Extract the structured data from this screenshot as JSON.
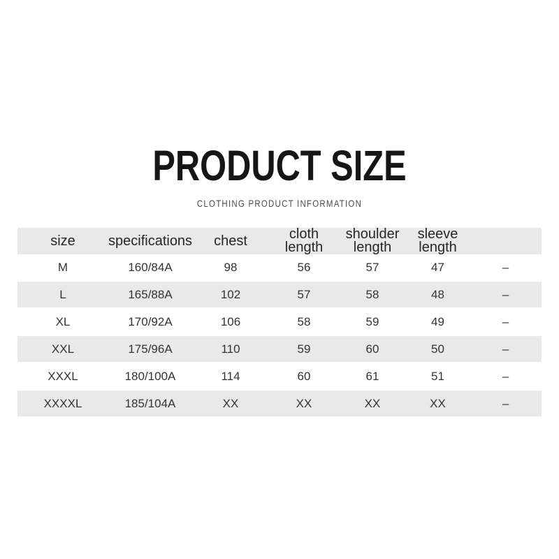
{
  "page": {
    "title": "PRODUCT SIZE",
    "subtitle": "CLOTHING PRODUCT INFORMATION"
  },
  "chart_data": {
    "type": "table",
    "title": "PRODUCT SIZE",
    "subtitle": "CLOTHING PRODUCT INFORMATION",
    "column_keys": [
      "size",
      "specifications",
      "chest",
      "cloth-length",
      "shoulder-length",
      "sleeve-length",
      "blank"
    ],
    "columns": [
      "size",
      "specifications",
      "chest",
      "cloth\nlength",
      "shoulder\nlength",
      "sleeve\nlength",
      ""
    ],
    "rows": [
      [
        "M",
        "160/84A",
        "98",
        "56",
        "57",
        "47",
        "–"
      ],
      [
        "L",
        "165/88A",
        "102",
        "57",
        "58",
        "48",
        "–"
      ],
      [
        "XL",
        "170/92A",
        "106",
        "58",
        "59",
        "49",
        "–"
      ],
      [
        "XXL",
        "175/96A",
        "110",
        "59",
        "60",
        "50",
        "–"
      ],
      [
        "XXXL",
        "180/100A",
        "114",
        "60",
        "61",
        "51",
        "–"
      ],
      [
        "XXXXL",
        "185/104A",
        "XX",
        "XX",
        "XX",
        "XX",
        "–"
      ]
    ],
    "layout_hints": {
      "stripe_rows": [
        "L",
        "XXL",
        "XXXXL"
      ],
      "header_background": "#e9e9e9",
      "stripe_background": "#e9e9e9"
    }
  },
  "colors": {
    "background": "#ffffff",
    "title_text": "#161616",
    "subtitle_text": "#4d4d4d",
    "table_text": "#333333",
    "row_stripe": "#e9e9e9"
  }
}
